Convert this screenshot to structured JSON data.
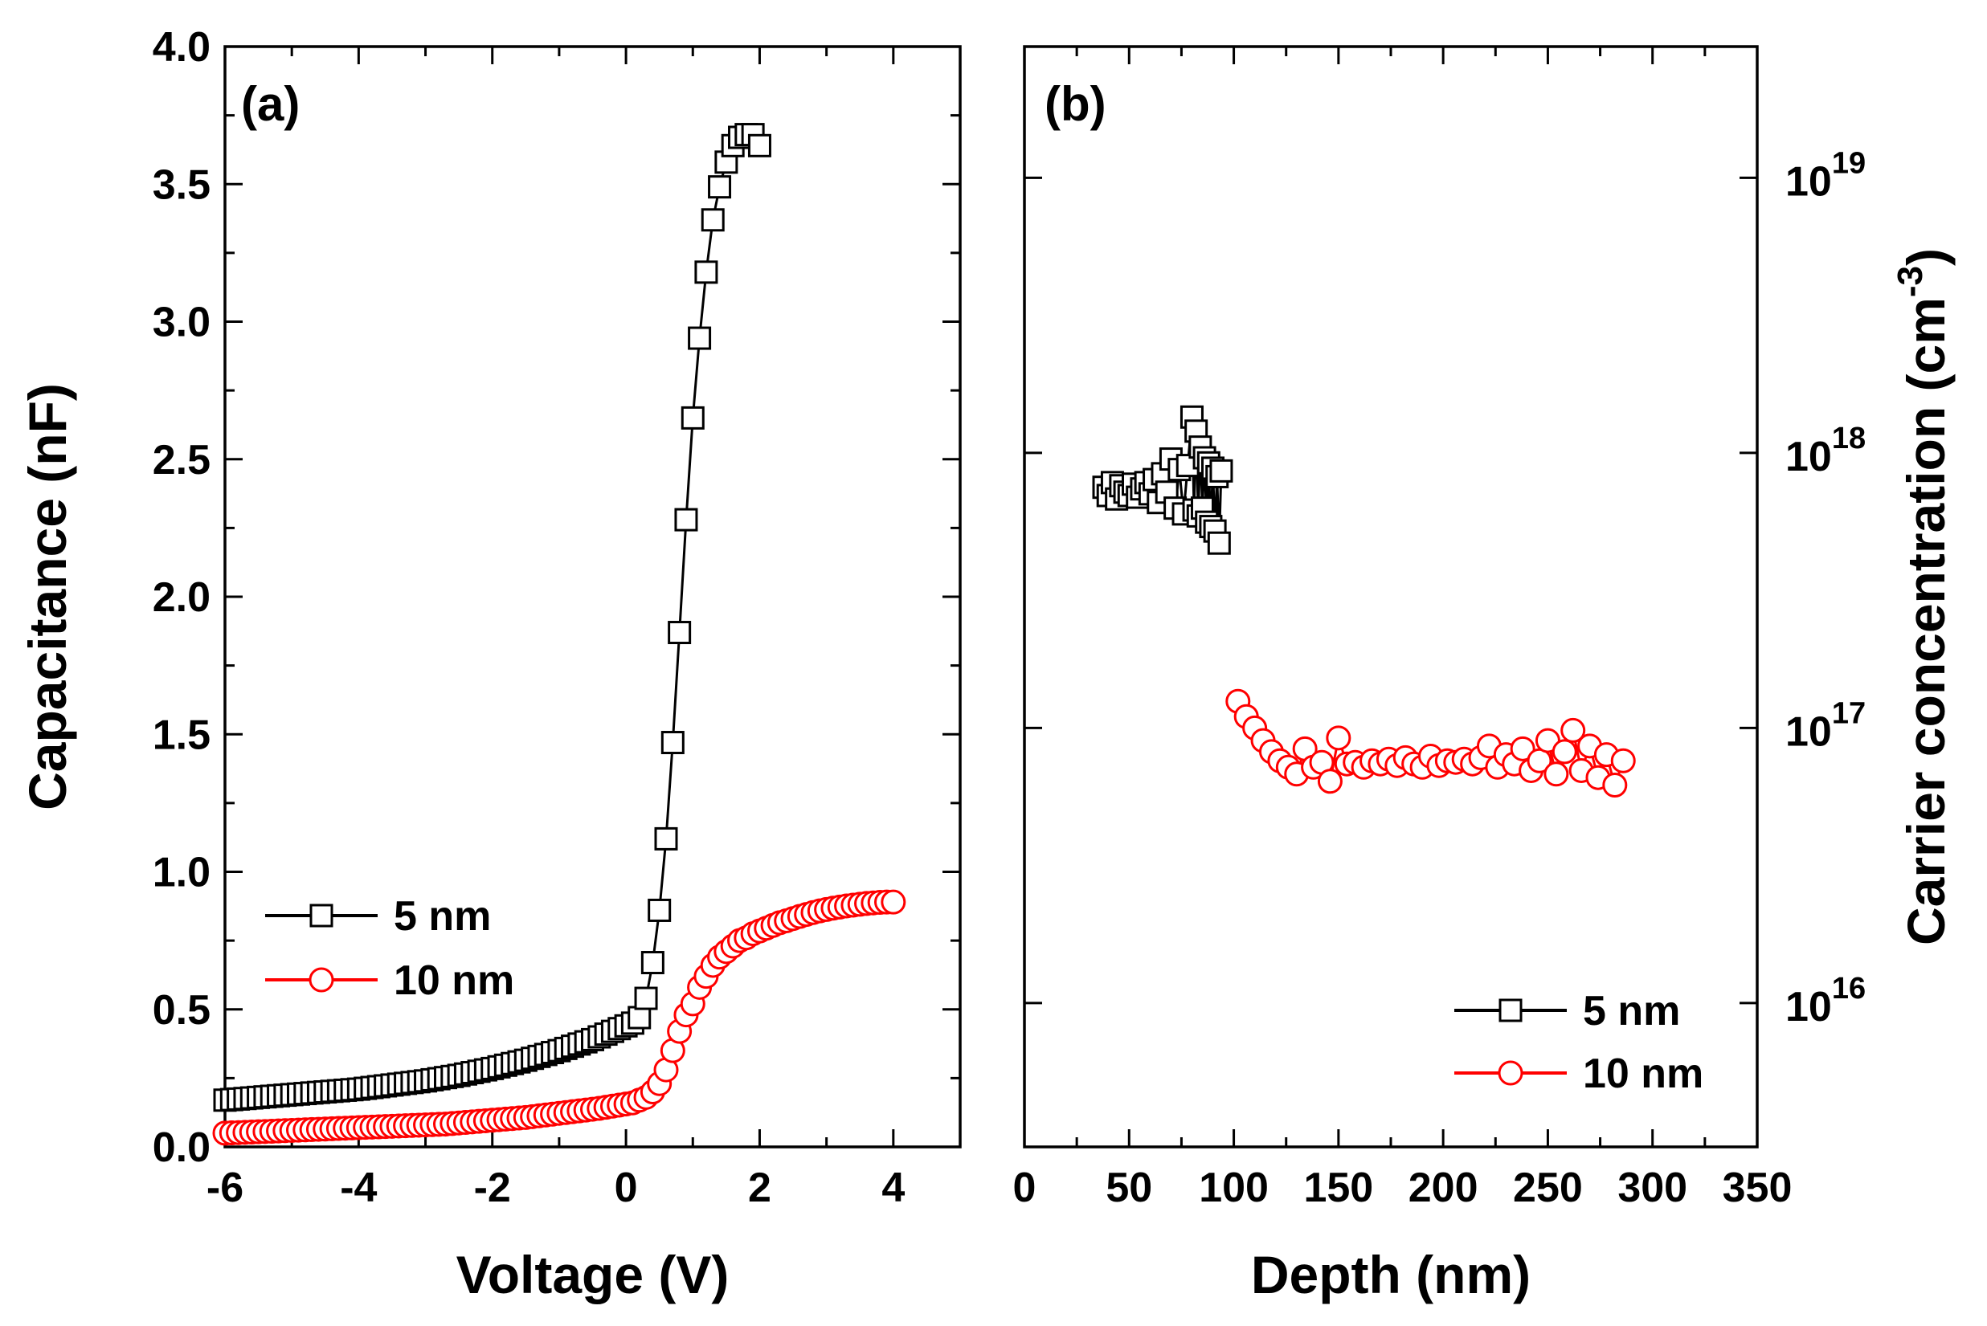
{
  "chart_data": [
    {
      "panel": "(a)",
      "type": "line",
      "xlabel": "Voltage (V)",
      "ylabel": "Capacitance (nF)",
      "xlim": [
        -6,
        5
      ],
      "ylim": [
        0,
        4
      ],
      "xticks": [
        -6,
        -4,
        -2,
        0,
        2,
        4
      ],
      "xtick_labels": [
        "-6",
        "-4",
        "-2",
        "0",
        "2",
        "4"
      ],
      "yticks": [
        0,
        0.5,
        1,
        1.5,
        2,
        2.5,
        3,
        3.5,
        4
      ],
      "ytick_labels": [
        "0.0",
        "0.5",
        "1.0",
        "1.5",
        "2.0",
        "2.5",
        "3.0",
        "3.5",
        "4.0"
      ],
      "legend_position": "lower-left",
      "series": [
        {
          "name": "5 nm",
          "marker": "square",
          "color": "#000000",
          "x": [
            -6.0,
            -5.9,
            -5.8,
            -5.7,
            -5.6,
            -5.5,
            -5.4,
            -5.3,
            -5.2,
            -5.1,
            -5.0,
            -4.9,
            -4.8,
            -4.7,
            -4.6,
            -4.5,
            -4.4,
            -4.3,
            -4.2,
            -4.1,
            -4.0,
            -3.9,
            -3.8,
            -3.7,
            -3.6,
            -3.5,
            -3.4,
            -3.3,
            -3.2,
            -3.1,
            -3.0,
            -2.9,
            -2.8,
            -2.7,
            -2.6,
            -2.5,
            -2.4,
            -2.3,
            -2.2,
            -2.1,
            -2.0,
            -1.9,
            -1.8,
            -1.7,
            -1.6,
            -1.5,
            -1.4,
            -1.3,
            -1.2,
            -1.1,
            -1.0,
            -0.9,
            -0.8,
            -0.7,
            -0.6,
            -0.5,
            -0.4,
            -0.3,
            -0.2,
            -0.1,
            0.0,
            0.1,
            0.2,
            0.3,
            0.4,
            0.5,
            0.6,
            0.7,
            0.8,
            0.9,
            1.0,
            1.1,
            1.2,
            1.3,
            1.4,
            1.5,
            1.6,
            1.7,
            1.8,
            1.9,
            2.0
          ],
          "y": [
            0.17,
            0.172,
            0.174,
            0.176,
            0.178,
            0.18,
            0.182,
            0.184,
            0.186,
            0.188,
            0.19,
            0.192,
            0.194,
            0.196,
            0.198,
            0.2,
            0.202,
            0.204,
            0.206,
            0.208,
            0.21,
            0.213,
            0.216,
            0.219,
            0.222,
            0.225,
            0.228,
            0.231,
            0.234,
            0.237,
            0.24,
            0.244,
            0.248,
            0.252,
            0.256,
            0.26,
            0.265,
            0.27,
            0.275,
            0.28,
            0.285,
            0.291,
            0.297,
            0.303,
            0.309,
            0.315,
            0.322,
            0.329,
            0.336,
            0.343,
            0.35,
            0.358,
            0.366,
            0.374,
            0.382,
            0.39,
            0.4,
            0.41,
            0.42,
            0.43,
            0.44,
            0.45,
            0.47,
            0.54,
            0.67,
            0.86,
            1.12,
            1.47,
            1.87,
            2.28,
            2.65,
            2.94,
            3.18,
            3.37,
            3.49,
            3.58,
            3.64,
            3.67,
            3.68,
            3.68,
            3.64
          ]
        },
        {
          "name": "10 nm",
          "marker": "circle",
          "color": "#ff0000",
          "x": [
            -6.0,
            -5.9,
            -5.8,
            -5.7,
            -5.6,
            -5.5,
            -5.4,
            -5.3,
            -5.2,
            -5.1,
            -5.0,
            -4.9,
            -4.8,
            -4.7,
            -4.6,
            -4.5,
            -4.4,
            -4.3,
            -4.2,
            -4.1,
            -4.0,
            -3.9,
            -3.8,
            -3.7,
            -3.6,
            -3.5,
            -3.4,
            -3.3,
            -3.2,
            -3.1,
            -3.0,
            -2.9,
            -2.8,
            -2.7,
            -2.6,
            -2.5,
            -2.4,
            -2.3,
            -2.2,
            -2.1,
            -2.0,
            -1.9,
            -1.8,
            -1.7,
            -1.6,
            -1.5,
            -1.4,
            -1.3,
            -1.2,
            -1.1,
            -1.0,
            -0.9,
            -0.8,
            -0.7,
            -0.6,
            -0.5,
            -0.4,
            -0.3,
            -0.2,
            -0.1,
            0.0,
            0.1,
            0.2,
            0.3,
            0.4,
            0.5,
            0.6,
            0.7,
            0.8,
            0.9,
            1.0,
            1.1,
            1.2,
            1.3,
            1.4,
            1.5,
            1.6,
            1.7,
            1.8,
            1.9,
            2.0,
            2.1,
            2.2,
            2.3,
            2.4,
            2.5,
            2.6,
            2.7,
            2.8,
            2.9,
            3.0,
            3.1,
            3.2,
            3.3,
            3.4,
            3.5,
            3.6,
            3.7,
            3.8,
            3.9,
            4.0
          ],
          "y": [
            0.05,
            0.051,
            0.052,
            0.053,
            0.054,
            0.055,
            0.056,
            0.057,
            0.058,
            0.059,
            0.06,
            0.061,
            0.062,
            0.063,
            0.064,
            0.065,
            0.066,
            0.067,
            0.068,
            0.069,
            0.07,
            0.071,
            0.072,
            0.073,
            0.074,
            0.075,
            0.076,
            0.077,
            0.078,
            0.079,
            0.08,
            0.081,
            0.082,
            0.083,
            0.085,
            0.087,
            0.089,
            0.091,
            0.093,
            0.095,
            0.097,
            0.099,
            0.101,
            0.103,
            0.105,
            0.107,
            0.11,
            0.113,
            0.116,
            0.119,
            0.122,
            0.125,
            0.128,
            0.131,
            0.134,
            0.137,
            0.14,
            0.144,
            0.148,
            0.152,
            0.156,
            0.16,
            0.17,
            0.18,
            0.2,
            0.23,
            0.28,
            0.35,
            0.42,
            0.48,
            0.52,
            0.58,
            0.62,
            0.66,
            0.69,
            0.71,
            0.73,
            0.75,
            0.76,
            0.775,
            0.785,
            0.795,
            0.805,
            0.815,
            0.822,
            0.83,
            0.838,
            0.845,
            0.852,
            0.858,
            0.863,
            0.868,
            0.872,
            0.876,
            0.879,
            0.882,
            0.885,
            0.887,
            0.889,
            0.89,
            0.89
          ]
        }
      ]
    },
    {
      "panel": "(b)",
      "type": "scatter",
      "xlabel": "Depth (nm)",
      "ylabel": "Carrier concentration (cm-3)",
      "ylabel_main": "Carrier concentration (cm",
      "ylabel_exp": "-3",
      "ylabel_close": ")",
      "yscale": "log",
      "xlim": [
        0,
        350
      ],
      "ylim": [
        3000000000000000.0,
        3e+19
      ],
      "xticks": [
        0,
        50,
        100,
        150,
        200,
        250,
        300,
        350
      ],
      "xtick_labels": [
        "0",
        "50",
        "100",
        "150",
        "200",
        "250",
        "300",
        "350"
      ],
      "yticks": [
        1e+16,
        1e+17,
        1e+18,
        1e+19
      ],
      "ytick_base": "10",
      "ytick_exponents": [
        "16",
        "17",
        "18",
        "19"
      ],
      "legend_position": "lower-right",
      "series": [
        {
          "name": "5 nm",
          "marker": "square",
          "color": "#000000",
          "x": [
            38,
            40,
            42,
            44,
            46,
            48,
            50,
            52,
            54,
            56,
            58,
            60,
            62,
            64,
            66,
            68,
            70,
            72,
            74,
            76,
            78,
            80,
            81,
            82,
            83,
            84,
            85,
            86,
            87,
            88,
            89,
            90,
            91,
            92,
            93,
            94
          ],
          "y": [
            7.5e+17,
            7e+17,
            7.8e+17,
            6.8e+17,
            7.6e+17,
            7.2e+17,
            7e+17,
            7.7e+17,
            6.9e+17,
            7.4e+17,
            7.8e+17,
            7.1e+17,
            8e+17,
            6.6e+17,
            8.4e+17,
            7.2e+17,
            9.5e+17,
            6.3e+17,
            8.7e+17,
            6e+17,
            9e+17,
            1.35e+18,
            6.2e+17,
            1.2e+18,
            5.9e+17,
            1.05e+18,
            6.3e+17,
            9.6e+17,
            5.6e+17,
            9.2e+17,
            5.4e+17,
            8.8e+17,
            5.2e+17,
            8.2e+17,
            4.7e+17,
            8.6e+17
          ]
        },
        {
          "name": "10 nm",
          "marker": "circle",
          "color": "#ff0000",
          "x": [
            102,
            106,
            110,
            114,
            118,
            122,
            126,
            130,
            134,
            138,
            142,
            146,
            150,
            154,
            158,
            162,
            166,
            170,
            174,
            178,
            182,
            186,
            190,
            194,
            198,
            202,
            206,
            210,
            214,
            218,
            222,
            226,
            230,
            234,
            238,
            242,
            246,
            250,
            254,
            258,
            262,
            266,
            270,
            274,
            278,
            282,
            286
          ],
          "y": [
            1.25e+17,
            1.1e+17,
            1e+17,
            9e+16,
            8.2e+16,
            7.6e+16,
            7.2e+16,
            6.8e+16,
            8.4e+16,
            7.2e+16,
            7.5e+16,
            6.4e+16,
            9.2e+16,
            7.4e+16,
            7.5e+16,
            7.2e+16,
            7.6e+16,
            7.4e+16,
            7.7e+16,
            7.3e+16,
            7.8e+16,
            7.4e+16,
            7.2e+16,
            7.9e+16,
            7.3e+16,
            7.6e+16,
            7.5e+16,
            7.7e+16,
            7.4e+16,
            7.8e+16,
            8.6e+16,
            7.2e+16,
            8e+16,
            7.4e+16,
            8.4e+16,
            7e+16,
            7.6e+16,
            9e+16,
            6.8e+16,
            8.2e+16,
            9.8e+16,
            7e+16,
            8.6e+16,
            6.6e+16,
            8e+16,
            6.2e+16,
            7.6e+16
          ]
        }
      ]
    }
  ]
}
